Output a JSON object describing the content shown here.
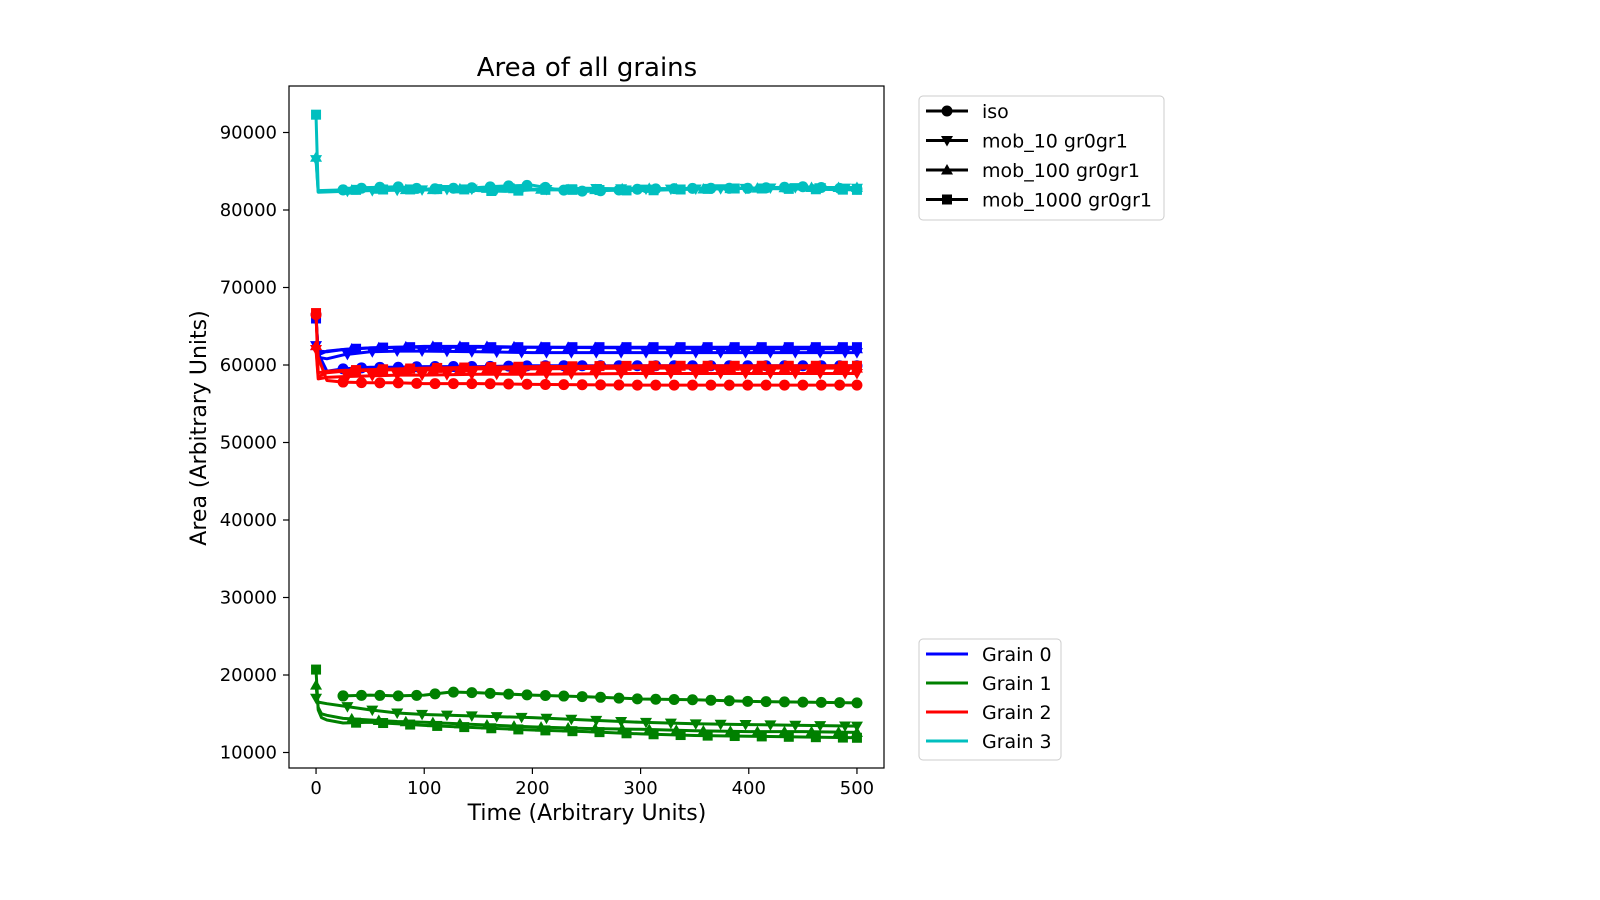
{
  "chart_data": {
    "type": "line",
    "title": "Area of all grains",
    "xlabel": "Time (Arbitrary Units)",
    "ylabel": "Area (Arbitrary Units)",
    "xlim": [
      -25,
      525
    ],
    "ylim": [
      8000,
      96000
    ],
    "xticks": [
      0,
      100,
      200,
      300,
      400,
      500
    ],
    "yticks": [
      10000,
      20000,
      30000,
      40000,
      50000,
      60000,
      70000,
      80000,
      90000
    ],
    "xtick_labels": [
      "0",
      "100",
      "200",
      "300",
      "400",
      "500"
    ],
    "ytick_labels": [
      "10000",
      "20000",
      "30000",
      "40000",
      "50000",
      "60000",
      "70000",
      "80000",
      "90000"
    ],
    "grid": false,
    "marker_legend": {
      "placement": "outside-top-right",
      "entries": [
        {
          "label": "iso",
          "marker": "circle"
        },
        {
          "label": "mob_10 gr0gr1",
          "marker": "triangle-down"
        },
        {
          "label": "mob_100 gr0gr1",
          "marker": "triangle-up"
        },
        {
          "label": "mob_1000 gr0gr1",
          "marker": "square"
        }
      ]
    },
    "color_legend": {
      "placement": "outside-bottom-right",
      "entries": [
        {
          "label": "Grain 0",
          "color": "#0000ff"
        },
        {
          "label": "Grain 1",
          "color": "#008000"
        },
        {
          "label": "Grain 2",
          "color": "#ff0000"
        },
        {
          "label": "Grain 3",
          "color": "#00bfbf"
        }
      ]
    },
    "series": [
      {
        "grain": 0,
        "color": "#0000ff",
        "marker": "circle",
        "x": [
          0,
          2,
          10,
          25,
          50,
          75,
          100,
          150,
          200,
          300,
          400,
          500
        ],
        "y": [
          66500,
          61500,
          59200,
          59500,
          59700,
          59700,
          59800,
          59800,
          59900,
          59900,
          59900,
          59900
        ],
        "marker_step": 17
      },
      {
        "grain": 0,
        "color": "#0000ff",
        "marker": "triangle-down",
        "x": [
          0,
          2,
          10,
          25,
          50,
          75,
          100,
          150,
          200,
          300,
          400,
          500
        ],
        "y": [
          62500,
          61000,
          60800,
          61300,
          61700,
          61800,
          61800,
          61700,
          61600,
          61600,
          61600,
          61600
        ],
        "marker_step": 23
      },
      {
        "grain": 0,
        "color": "#0000ff",
        "marker": "triangle-up",
        "x": [
          0,
          2,
          10,
          25,
          50,
          75,
          100,
          150,
          200,
          300,
          400,
          500
        ],
        "y": [
          62500,
          61300,
          61800,
          62000,
          62200,
          62300,
          62400,
          62400,
          62300,
          62200,
          62100,
          62100
        ],
        "marker_step": 25
      },
      {
        "grain": 0,
        "color": "#0000ff",
        "marker": "square",
        "x": [
          0,
          2,
          10,
          25,
          50,
          75,
          100,
          150,
          200,
          300,
          400,
          500
        ],
        "y": [
          66000,
          61800,
          61700,
          62000,
          62200,
          62300,
          62300,
          62300,
          62300,
          62300,
          62300,
          62300
        ],
        "marker_step": 25
      },
      {
        "grain": 1,
        "color": "#008000",
        "marker": "circle",
        "x": [
          25,
          50,
          75,
          100,
          125,
          150,
          200,
          250,
          300,
          350,
          400,
          450,
          500
        ],
        "y": [
          17300,
          17400,
          17300,
          17400,
          17800,
          17700,
          17400,
          17200,
          16900,
          16800,
          16600,
          16500,
          16400
        ],
        "marker_step": 17
      },
      {
        "grain": 1,
        "color": "#008000",
        "marker": "triangle-down",
        "x": [
          0,
          2,
          10,
          25,
          50,
          75,
          100,
          150,
          200,
          250,
          300,
          350,
          400,
          450,
          500
        ],
        "y": [
          17000,
          16500,
          16300,
          16000,
          15500,
          15100,
          14900,
          14700,
          14500,
          14200,
          13900,
          13700,
          13600,
          13500,
          13400
        ],
        "marker_step": 23
      },
      {
        "grain": 1,
        "color": "#008000",
        "marker": "triangle-up",
        "x": [
          0,
          2,
          5,
          10,
          25,
          50,
          75,
          100,
          150,
          200,
          250,
          300,
          350,
          400,
          450,
          500
        ],
        "y": [
          18700,
          15800,
          15000,
          14800,
          14400,
          14200,
          14000,
          13900,
          13600,
          13300,
          13100,
          13000,
          12800,
          12700,
          12700,
          12600
        ],
        "marker_step": 25
      },
      {
        "grain": 1,
        "color": "#008000",
        "marker": "square",
        "x": [
          0,
          2,
          5,
          10,
          25,
          50,
          75,
          100,
          150,
          200,
          250,
          300,
          350,
          400,
          450,
          500
        ],
        "y": [
          20700,
          15500,
          14500,
          14200,
          13800,
          13900,
          13700,
          13500,
          13200,
          12900,
          12700,
          12400,
          12200,
          12100,
          12000,
          11900
        ],
        "marker_step": 25
      },
      {
        "grain": 2,
        "color": "#ff0000",
        "marker": "circle",
        "x": [
          0,
          2,
          10,
          25,
          50,
          75,
          100,
          150,
          200,
          300,
          400,
          500
        ],
        "y": [
          66500,
          61000,
          58000,
          57800,
          57700,
          57700,
          57600,
          57600,
          57500,
          57400,
          57400,
          57400
        ],
        "marker_step": 17
      },
      {
        "grain": 2,
        "color": "#ff0000",
        "marker": "triangle-down",
        "x": [
          0,
          2,
          10,
          25,
          50,
          75,
          100,
          150,
          200,
          300,
          400,
          500
        ],
        "y": [
          62000,
          58200,
          58400,
          58500,
          58600,
          58700,
          58700,
          58800,
          58800,
          58900,
          58900,
          58900
        ],
        "marker_step": 23
      },
      {
        "grain": 2,
        "color": "#ff0000",
        "marker": "triangle-up",
        "x": [
          0,
          2,
          10,
          25,
          50,
          75,
          100,
          150,
          200,
          300,
          400,
          500
        ],
        "y": [
          62500,
          58500,
          59000,
          59200,
          59300,
          59400,
          59400,
          59500,
          59500,
          59600,
          59600,
          59600
        ],
        "marker_step": 25
      },
      {
        "grain": 2,
        "color": "#ff0000",
        "marker": "square",
        "x": [
          0,
          2,
          10,
          25,
          50,
          75,
          100,
          150,
          200,
          300,
          400,
          500
        ],
        "y": [
          66700,
          59000,
          59200,
          59300,
          59400,
          59500,
          59600,
          59700,
          59800,
          59900,
          59900,
          59900
        ],
        "marker_step": 25
      },
      {
        "grain": 3,
        "color": "#00bfbf",
        "marker": "circle",
        "x": [
          25,
          50,
          75,
          100,
          125,
          150,
          175,
          200,
          225,
          250,
          300,
          350,
          400,
          450,
          500
        ],
        "y": [
          82600,
          82900,
          83000,
          82700,
          82800,
          82900,
          83100,
          83200,
          82600,
          82400,
          82700,
          82800,
          82800,
          83000,
          82700
        ],
        "marker_step": 17
      },
      {
        "grain": 3,
        "color": "#00bfbf",
        "marker": "triangle-down",
        "x": [
          0,
          2,
          25,
          50,
          100,
          150,
          200,
          250,
          300,
          350,
          400,
          450,
          500
        ],
        "y": [
          86500,
          82300,
          82400,
          82500,
          82600,
          82700,
          82600,
          82800,
          82700,
          82700,
          82800,
          82900,
          82800
        ],
        "marker_step": 23
      },
      {
        "grain": 3,
        "color": "#00bfbf",
        "marker": "triangle-up",
        "x": [
          0,
          2,
          25,
          50,
          100,
          150,
          200,
          250,
          300,
          350,
          400,
          450,
          500
        ],
        "y": [
          86800,
          82400,
          82500,
          82700,
          82600,
          82800,
          82700,
          82600,
          82800,
          82700,
          82800,
          82900,
          82900
        ],
        "marker_step": 25
      },
      {
        "grain": 3,
        "color": "#00bfbf",
        "marker": "square",
        "x": [
          0,
          2,
          25,
          50,
          75,
          100,
          125,
          150,
          175,
          200,
          250,
          300,
          350,
          400,
          450,
          500
        ],
        "y": [
          92300,
          82500,
          82600,
          82600,
          82700,
          82600,
          82800,
          82500,
          82400,
          82600,
          82600,
          82500,
          82700,
          82800,
          82700,
          82600
        ],
        "marker_step": 25
      }
    ]
  }
}
